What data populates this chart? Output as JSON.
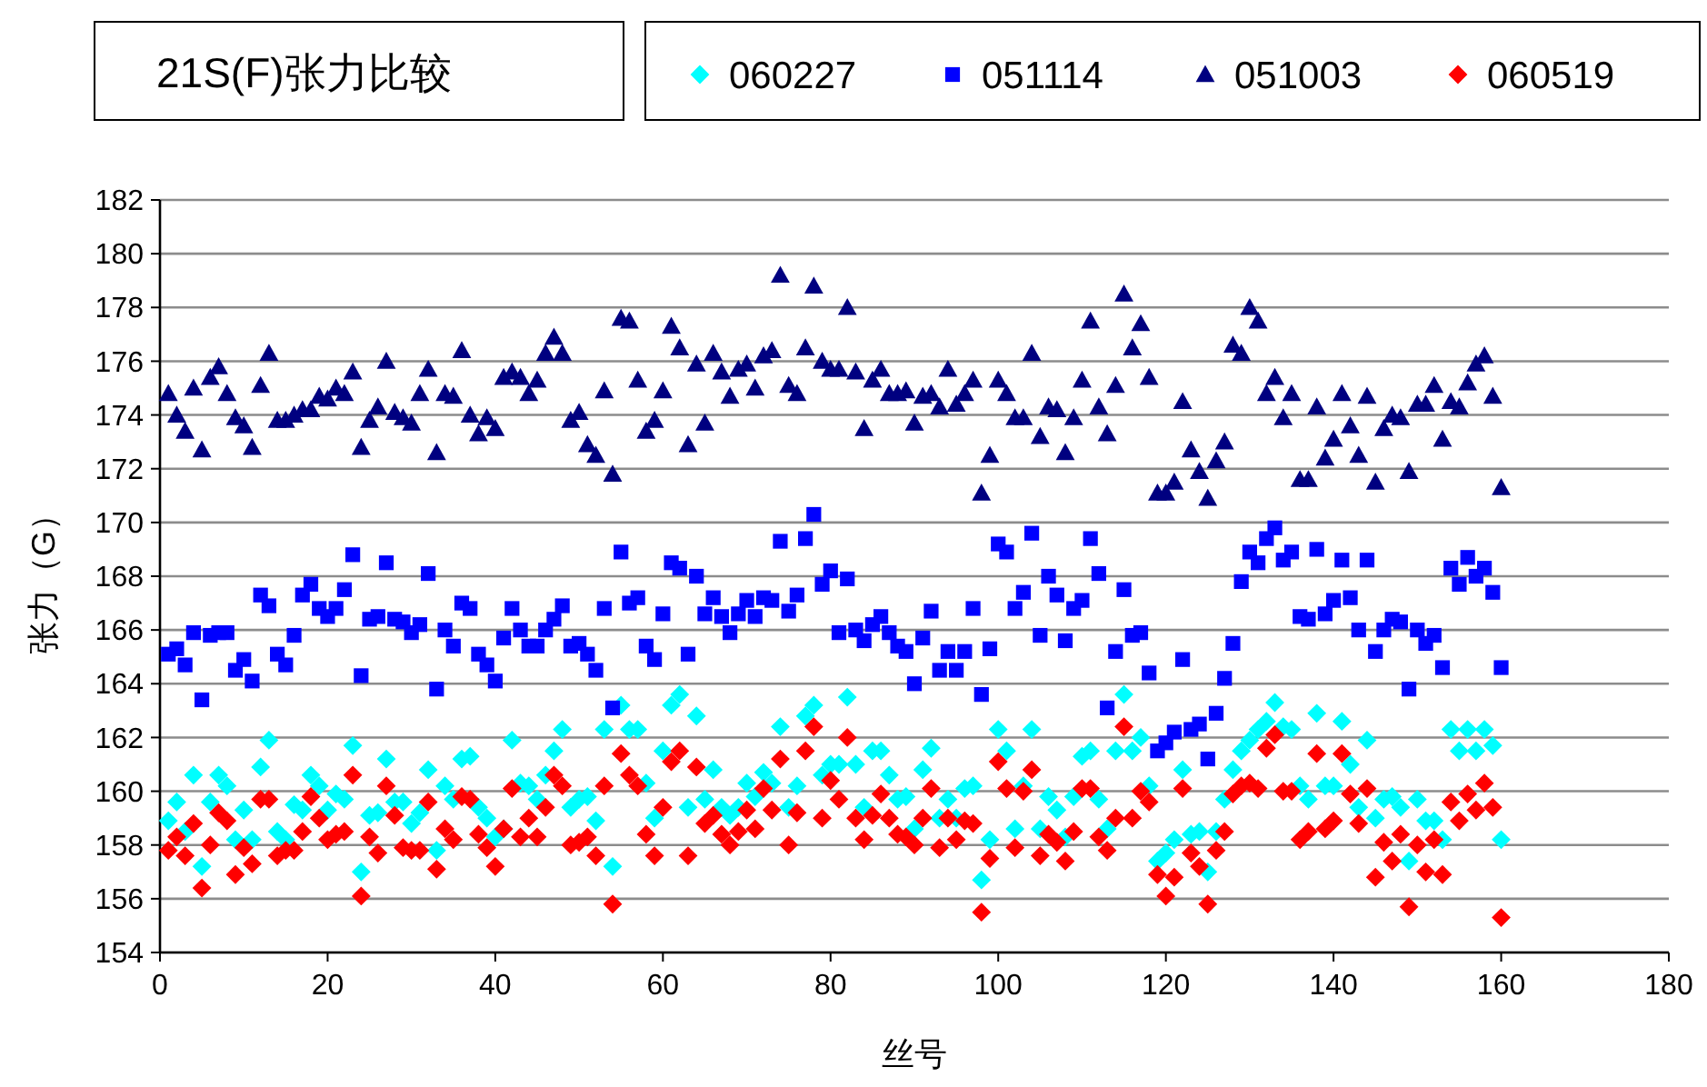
{
  "chart_data": {
    "type": "scatter",
    "title": "21S(F)张力比较",
    "xlabel": "丝号",
    "ylabel": "张力（G）",
    "x": [
      1,
      2,
      3,
      4,
      5,
      6,
      7,
      8,
      9,
      10,
      11,
      12,
      13,
      14,
      15,
      16,
      17,
      18,
      19,
      20,
      21,
      22,
      23,
      24,
      25,
      26,
      27,
      28,
      29,
      30,
      31,
      32,
      33,
      34,
      35,
      36,
      37,
      38,
      39,
      40,
      41,
      42,
      43,
      44,
      45,
      46,
      47,
      48,
      49,
      50,
      51,
      52,
      53,
      54,
      55,
      56,
      57,
      58,
      59,
      60,
      61,
      62,
      63,
      64,
      65,
      66,
      67,
      68,
      69,
      70,
      71,
      72,
      73,
      74,
      75,
      76,
      77,
      78,
      79,
      80,
      81,
      82,
      83,
      84,
      85,
      86,
      87,
      88,
      89,
      90,
      91,
      92,
      93,
      94,
      95,
      96,
      97,
      98,
      99,
      100,
      101,
      102,
      103,
      104,
      105,
      106,
      107,
      108,
      109,
      110,
      111,
      112,
      113,
      114,
      115,
      116,
      117,
      118,
      119,
      120,
      121,
      122,
      123,
      124,
      125,
      126,
      127,
      128,
      129,
      130,
      131,
      132,
      133,
      134,
      135,
      136,
      137,
      138,
      139,
      140,
      141,
      142,
      143,
      144,
      145,
      146,
      147,
      148,
      149,
      150,
      151,
      152,
      153,
      154,
      155,
      156,
      157,
      158,
      159,
      160
    ],
    "xlim": [
      0,
      180
    ],
    "xticks": [
      0,
      20,
      40,
      60,
      80,
      100,
      120,
      140,
      160,
      180
    ],
    "ylim": [
      154,
      182
    ],
    "yticks": [
      154,
      156,
      158,
      160,
      162,
      164,
      166,
      168,
      170,
      172,
      174,
      176,
      178,
      180,
      182
    ],
    "grid": "y",
    "legend": "top right",
    "series": [
      {
        "name": "060227",
        "color": "#00ffff",
        "marker": "diamond",
        "values": [
          158.9,
          159.6,
          158.5,
          160.6,
          157.2,
          159.6,
          160.6,
          160.2,
          158.2,
          159.3,
          158.2,
          160.9,
          161.9,
          158.5,
          158.2,
          159.5,
          159.3,
          160.6,
          160.2,
          159.3,
          159.9,
          159.7,
          161.7,
          157.0,
          159.1,
          159.2,
          161.2,
          159.6,
          159.6,
          158.8,
          159.2,
          160.8,
          157.8,
          160.2,
          159.7,
          161.2,
          161.3,
          159.4,
          159.0,
          158.3,
          158.6,
          161.9,
          160.3,
          160.2,
          159.7,
          160.6,
          161.5,
          162.3,
          159.4,
          159.7,
          159.8,
          158.9,
          162.3,
          157.2,
          163.2,
          162.3,
          162.3,
          160.3,
          159.0,
          161.5,
          163.2,
          163.6,
          159.4,
          162.8,
          159.7,
          160.8,
          159.4,
          159.1,
          159.4,
          160.3,
          159.8,
          160.7,
          160.3,
          162.4,
          159.4,
          160.2,
          162.8,
          163.2,
          160.6,
          161.0,
          161.0,
          163.5,
          161.0,
          159.4,
          161.5,
          161.5,
          160.6,
          159.7,
          159.8,
          158.6,
          160.8,
          161.6,
          159.0,
          159.7,
          159.0,
          160.1,
          160.2,
          156.7,
          158.2,
          162.3,
          161.5,
          158.6,
          160.2,
          162.3,
          158.6,
          159.8,
          159.3,
          158.3,
          159.8,
          161.3,
          161.5,
          159.7,
          158.6,
          161.5,
          163.6,
          161.5,
          162.0,
          160.2,
          157.4,
          157.7,
          158.2,
          160.8,
          158.4,
          158.5,
          157.0,
          158.5,
          159.7,
          160.8,
          161.5,
          161.9,
          162.3,
          162.6,
          163.3,
          162.4,
          162.3,
          160.2,
          159.7,
          162.9,
          160.2,
          160.2,
          162.6,
          161.0,
          159.4,
          161.9,
          159.0,
          159.7,
          159.8,
          159.4,
          157.4,
          159.7,
          158.9,
          158.9,
          158.2,
          162.3,
          161.5,
          162.3,
          161.5,
          162.3,
          161.7,
          158.2
        ]
      },
      {
        "name": "051114",
        "color": "#0000ff",
        "marker": "square",
        "values": [
          165.1,
          165.3,
          164.7,
          165.9,
          163.4,
          165.8,
          165.9,
          165.9,
          164.5,
          164.9,
          164.1,
          167.3,
          166.9,
          165.1,
          164.7,
          165.8,
          167.3,
          167.7,
          166.8,
          166.5,
          166.8,
          167.5,
          168.8,
          164.3,
          166.4,
          166.5,
          168.5,
          166.4,
          166.3,
          165.9,
          166.2,
          168.1,
          163.8,
          166.0,
          165.4,
          167.0,
          166.8,
          165.1,
          164.7,
          164.1,
          165.7,
          166.8,
          166.0,
          165.4,
          165.4,
          166.0,
          166.4,
          166.9,
          165.4,
          165.5,
          165.1,
          164.5,
          166.8,
          163.1,
          168.9,
          167.0,
          167.2,
          165.4,
          164.9,
          166.6,
          168.5,
          168.3,
          165.1,
          168.0,
          166.6,
          167.2,
          166.5,
          165.9,
          166.6,
          167.1,
          166.5,
          167.2,
          167.1,
          169.3,
          166.7,
          167.3,
          169.4,
          170.3,
          167.7,
          168.2,
          165.9,
          167.9,
          166.0,
          165.6,
          166.2,
          166.5,
          165.9,
          165.4,
          165.2,
          164.0,
          165.7,
          166.7,
          164.5,
          165.2,
          164.5,
          165.2,
          166.8,
          163.6,
          165.3,
          169.2,
          168.9,
          166.8,
          167.4,
          169.6,
          165.8,
          168.0,
          167.3,
          165.6,
          166.8,
          167.1,
          169.4,
          168.1,
          163.1,
          165.2,
          167.5,
          165.8,
          165.9,
          164.4,
          161.5,
          161.8,
          162.2,
          164.9,
          162.3,
          162.5,
          161.2,
          162.9,
          164.2,
          165.5,
          167.8,
          168.9,
          168.5,
          169.4,
          169.8,
          168.6,
          168.9,
          166.5,
          166.4,
          169.0,
          166.6,
          167.1,
          168.6,
          167.2,
          166.0,
          168.6,
          165.2,
          166.0,
          166.4,
          166.3,
          163.8,
          166.0,
          165.5,
          165.8,
          164.6,
          168.3,
          167.7,
          168.7,
          168.0,
          168.3,
          167.4,
          164.6
        ]
      },
      {
        "name": "051003",
        "color": "#000080",
        "marker": "triangle",
        "values": [
          174.8,
          174.0,
          173.4,
          175.0,
          172.7,
          175.4,
          175.8,
          174.8,
          173.9,
          173.6,
          172.8,
          175.1,
          176.3,
          173.8,
          173.8,
          174.0,
          174.2,
          174.2,
          174.7,
          174.6,
          175.0,
          174.8,
          175.6,
          172.8,
          173.8,
          174.3,
          176.0,
          174.1,
          173.9,
          173.7,
          174.8,
          175.7,
          172.6,
          174.8,
          174.7,
          176.4,
          174.0,
          173.3,
          173.9,
          173.5,
          175.4,
          175.6,
          175.4,
          174.8,
          175.3,
          176.3,
          176.9,
          176.3,
          173.8,
          174.1,
          172.9,
          172.5,
          174.9,
          171.8,
          177.6,
          177.5,
          175.3,
          173.4,
          173.8,
          174.9,
          177.3,
          176.5,
          172.9,
          175.9,
          173.7,
          176.3,
          175.6,
          174.7,
          175.7,
          175.9,
          175.0,
          176.2,
          176.4,
          179.2,
          175.1,
          174.8,
          176.5,
          178.8,
          176.0,
          175.7,
          175.7,
          178.0,
          175.6,
          173.5,
          175.3,
          175.7,
          174.8,
          174.8,
          174.9,
          173.7,
          174.7,
          174.8,
          174.3,
          175.7,
          174.4,
          174.8,
          175.3,
          171.1,
          172.5,
          175.3,
          174.8,
          173.9,
          173.9,
          176.3,
          173.2,
          174.3,
          174.2,
          172.6,
          173.9,
          175.3,
          177.5,
          174.3,
          173.3,
          175.1,
          178.5,
          176.5,
          177.4,
          175.4,
          171.1,
          171.1,
          171.5,
          174.5,
          172.7,
          171.9,
          170.9,
          172.3,
          173.0,
          176.6,
          176.3,
          178.0,
          177.5,
          174.8,
          175.4,
          173.9,
          174.8,
          171.6,
          171.6,
          174.3,
          172.4,
          173.1,
          174.8,
          173.6,
          172.5,
          174.7,
          171.5,
          173.5,
          174.0,
          173.9,
          171.9,
          174.4,
          174.4,
          175.1,
          173.1,
          174.5,
          174.3,
          175.2,
          175.9,
          176.2,
          174.7,
          171.3
        ]
      },
      {
        "name": "060519",
        "color": "#ff0000",
        "marker": "diamond",
        "values": [
          157.8,
          158.3,
          157.6,
          158.8,
          156.4,
          158.0,
          159.2,
          158.9,
          156.9,
          157.9,
          157.3,
          159.7,
          159.7,
          157.6,
          157.8,
          157.8,
          158.5,
          159.8,
          159.0,
          158.2,
          158.4,
          158.5,
          160.6,
          156.1,
          158.3,
          157.7,
          160.2,
          159.1,
          157.9,
          157.8,
          157.8,
          159.6,
          157.1,
          158.6,
          158.2,
          159.8,
          159.7,
          158.4,
          157.9,
          157.2,
          158.6,
          160.1,
          158.3,
          159.0,
          158.3,
          159.4,
          160.6,
          160.2,
          158.0,
          158.1,
          158.3,
          157.6,
          160.2,
          155.8,
          161.4,
          160.6,
          160.2,
          158.4,
          157.6,
          159.4,
          161.1,
          161.5,
          157.6,
          160.9,
          158.8,
          159.1,
          158.4,
          158.0,
          158.5,
          159.3,
          158.6,
          160.1,
          159.3,
          161.2,
          158.0,
          159.2,
          161.5,
          162.4,
          159.0,
          160.4,
          159.7,
          162.0,
          159.0,
          158.2,
          159.1,
          159.9,
          159.0,
          158.4,
          158.3,
          158.0,
          159.0,
          160.1,
          157.9,
          159.0,
          158.2,
          158.9,
          158.8,
          155.5,
          157.5,
          161.1,
          160.1,
          157.9,
          160.0,
          160.8,
          157.6,
          158.4,
          158.1,
          157.4,
          158.5,
          160.1,
          160.1,
          158.3,
          157.8,
          159.0,
          162.4,
          159.0,
          160.0,
          159.6,
          156.9,
          156.1,
          156.8,
          160.1,
          157.7,
          157.2,
          155.8,
          157.8,
          158.5,
          159.9,
          160.2,
          160.3,
          160.1,
          161.6,
          162.1,
          160.0,
          160.0,
          158.2,
          158.5,
          161.4,
          158.6,
          158.9,
          161.4,
          159.9,
          158.8,
          160.1,
          156.8,
          158.1,
          157.4,
          158.4,
          155.7,
          158.0,
          157.0,
          158.2,
          156.9,
          159.6,
          158.9,
          159.9,
          159.3,
          160.3,
          159.4,
          155.3
        ]
      }
    ]
  }
}
